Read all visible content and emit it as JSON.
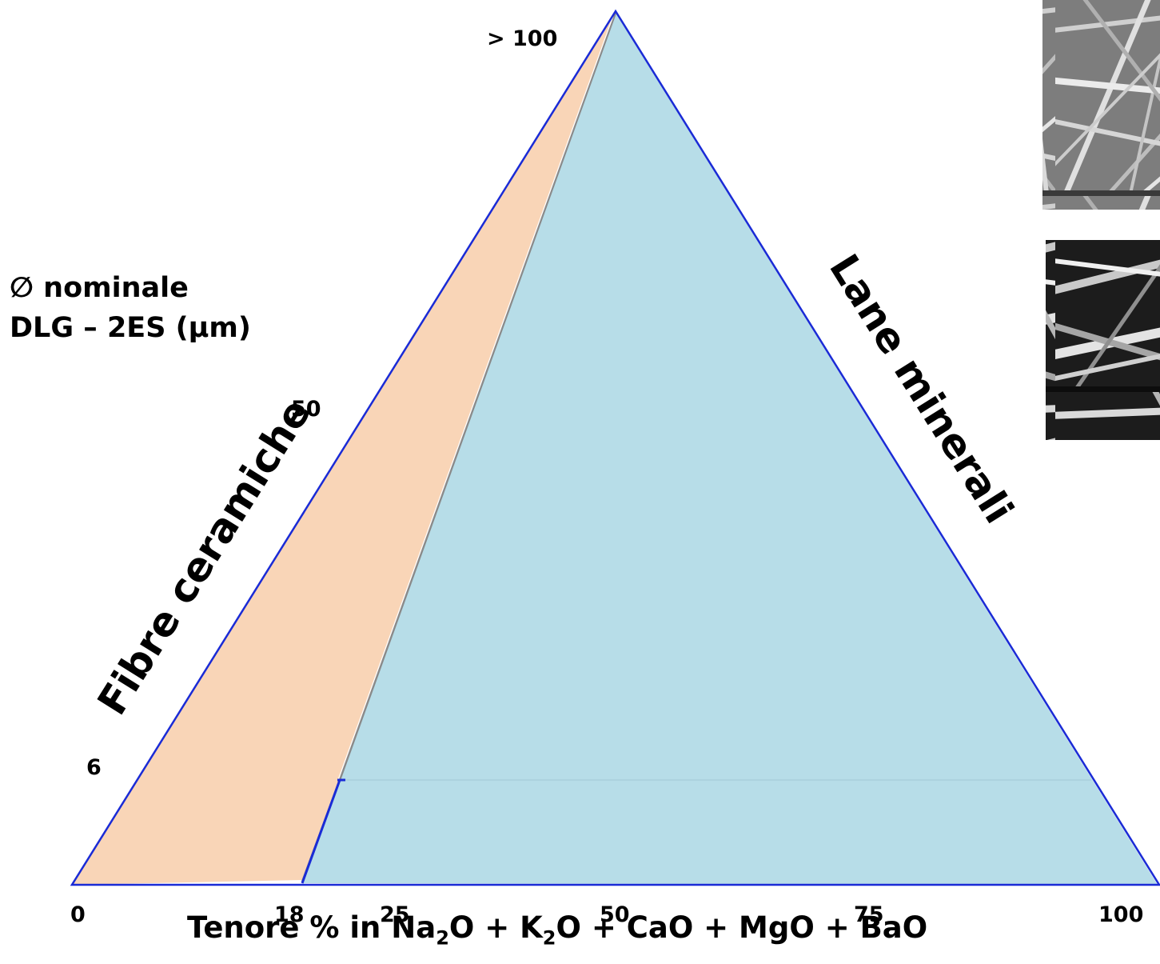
{
  "y_axis": {
    "title_line1": "∅ nominale",
    "title_line2": "DLG – 2ES (μm)",
    "ticks": [
      "> 100",
      "50",
      "6"
    ]
  },
  "x_axis": {
    "ticks": [
      "0",
      "18",
      "25",
      "50",
      "75",
      "100"
    ],
    "title": {
      "pre": "Tenore % in Na",
      "sub1": "2",
      "mid": "O + K",
      "sub2": "2",
      "post": "O + CaO + MgO + BaO"
    }
  },
  "regions": [
    {
      "name": "Fibre ceramiche",
      "color": "#f9d5b7"
    },
    {
      "name": "Lane minerali",
      "color": "#b7dde8"
    }
  ],
  "colors": {
    "outline": "#1a2bd6",
    "ceramic_fill": "#f9d5b7",
    "mineral_fill": "#b7dde8"
  },
  "images": [
    {
      "icon": "sem-micrograph-fibers-1"
    },
    {
      "icon": "sem-micrograph-fibers-2"
    }
  ]
}
